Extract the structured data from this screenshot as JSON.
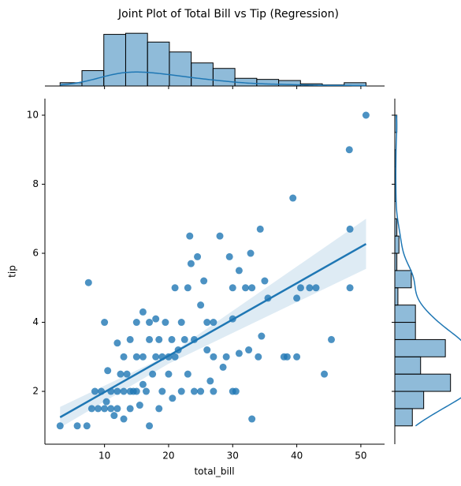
{
  "chart_data": {
    "type": "scatter",
    "title": "Joint Plot of Total Bill vs Tip (Regression)",
    "x_label": "total_bill",
    "y_label": "tip",
    "color": "#1f77b4",
    "xlim": [
      0.7,
      53.7
    ],
    "ylim": [
      0.47,
      10.48
    ],
    "xticks": [
      10,
      20,
      30,
      40,
      50
    ],
    "yticks": [
      2,
      4,
      6,
      8,
      10
    ],
    "x": [
      3.07,
      5.75,
      7.25,
      7.5,
      8,
      8.5,
      9,
      9.5,
      10,
      10.3,
      10,
      10.5,
      11,
      11,
      11.5,
      12,
      12,
      12,
      12.5,
      13,
      13,
      13,
      13.5,
      14,
      14,
      14,
      14.5,
      15,
      15,
      15,
      15.5,
      16,
      16,
      16,
      16.5,
      17,
      17,
      17,
      17.5,
      18,
      18,
      18.5,
      18.5,
      19,
      19,
      19.5,
      20,
      20,
      20.5,
      20.6,
      21,
      21,
      21.5,
      22,
      22,
      22.5,
      23,
      23,
      23.3,
      23.5,
      24,
      24,
      24.5,
      25,
      25,
      25.5,
      26,
      26,
      26.5,
      27,
      27,
      27,
      28,
      28.5,
      29,
      29.5,
      30,
      30,
      30,
      30.5,
      31,
      31,
      32,
      32.5,
      32.8,
      33,
      33,
      34,
      34.3,
      34.5,
      35,
      35.5,
      38,
      38.5,
      39.4,
      40,
      40,
      40.6,
      42,
      43,
      44.3,
      45.4,
      48.2,
      48.3,
      48.3,
      50.8
    ],
    "y": [
      1.0,
      1.0,
      1.0,
      5.15,
      1.5,
      2,
      1.5,
      2,
      1.5,
      1.7,
      4,
      2.6,
      2,
      1.5,
      1.3,
      1.5,
      2,
      3.4,
      2.5,
      1.2,
      2,
      3,
      2.5,
      1.5,
      2,
      3.5,
      2,
      2,
      3,
      4,
      1.6,
      2.2,
      3,
      4.3,
      2,
      1.0,
      3.5,
      4,
      2.5,
      3,
      4.1,
      1.5,
      3.5,
      2,
      3,
      4,
      3,
      2.5,
      3.5,
      1.8,
      3,
      5,
      3.2,
      2,
      4,
      3.5,
      2.5,
      5,
      6.5,
      5.7,
      2,
      3.5,
      5.9,
      4.5,
      2,
      5.2,
      3.2,
      4,
      2.3,
      4,
      2,
      3,
      6.5,
      2.7,
      3,
      5.9,
      2,
      5,
      4.1,
      2,
      5.5,
      3.1,
      5,
      3.2,
      6,
      1.2,
      5,
      3,
      6.7,
      3.6,
      5.2,
      4.7,
      3,
      3,
      7.6,
      3,
      4.7,
      5,
      5,
      5,
      2.5,
      3.5,
      9,
      6.7,
      5,
      10
    ],
    "regression": {
      "x": [
        3.07,
        50.81
      ],
      "y": [
        1.25,
        6.27
      ],
      "ci_x": [
        3.07,
        20,
        50.81
      ],
      "ci_lower": [
        0.95,
        2.8,
        5.55
      ],
      "ci_upper": [
        1.55,
        3.05,
        7.0
      ]
    },
    "marginal_x": {
      "type": "histogram",
      "bins": [
        3.07,
        6.48,
        9.89,
        13.3,
        16.71,
        20.12,
        23.53,
        26.94,
        30.35,
        33.76,
        37.17,
        40.58,
        43.99,
        47.4,
        50.81
      ],
      "counts": [
        3,
        14,
        47,
        48,
        40,
        31,
        21,
        16,
        7,
        6,
        5,
        2,
        1,
        3
      ],
      "ylim": [
        0,
        51
      ]
    },
    "marginal_y": {
      "type": "histogram",
      "bins": [
        1,
        1.5,
        2,
        2.5,
        3,
        3.5,
        4,
        4.5,
        5,
        5.5,
        6,
        6.5,
        7,
        7.5,
        8,
        8.5,
        9,
        9.5,
        10
      ],
      "counts": [
        17,
        28,
        54,
        25,
        49,
        20,
        20,
        3,
        16,
        2,
        4,
        2,
        0,
        1,
        0,
        1,
        0,
        2
      ],
      "xlim": [
        0,
        55
      ]
    }
  }
}
